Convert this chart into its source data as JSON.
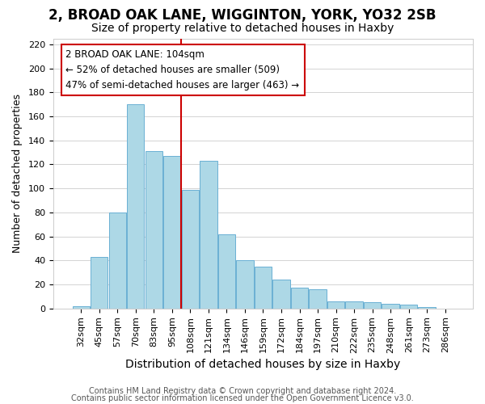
{
  "title": "2, BROAD OAK LANE, WIGGINTON, YORK, YO32 2SB",
  "subtitle": "Size of property relative to detached houses in Haxby",
  "xlabel": "Distribution of detached houses by size in Haxby",
  "ylabel": "Number of detached properties",
  "bar_labels": [
    "32sqm",
    "45sqm",
    "57sqm",
    "70sqm",
    "83sqm",
    "95sqm",
    "108sqm",
    "121sqm",
    "134sqm",
    "146sqm",
    "159sqm",
    "172sqm",
    "184sqm",
    "197sqm",
    "210sqm",
    "222sqm",
    "235sqm",
    "248sqm",
    "261sqm",
    "273sqm",
    "286sqm"
  ],
  "bar_values": [
    2,
    43,
    80,
    170,
    131,
    127,
    99,
    123,
    62,
    40,
    35,
    24,
    17,
    16,
    6,
    6,
    5,
    4,
    3,
    1,
    0
  ],
  "bar_color": "#add8e6",
  "bar_edge_color": "#6ab0d4",
  "vline_color": "#cc0000",
  "vline_index": 6,
  "annotation_line1": "2 BROAD OAK LANE: 104sqm",
  "annotation_line2": "← 52% of detached houses are smaller (509)",
  "annotation_line3": "47% of semi-detached houses are larger (463) →",
  "annotation_box_color": "#ffffff",
  "annotation_box_edge": "#cc0000",
  "ylim": [
    0,
    225
  ],
  "yticks": [
    0,
    20,
    40,
    60,
    80,
    100,
    120,
    140,
    160,
    180,
    200,
    220
  ],
  "footer1": "Contains HM Land Registry data © Crown copyright and database right 2024.",
  "footer2": "Contains public sector information licensed under the Open Government Licence v3.0.",
  "title_fontsize": 12,
  "subtitle_fontsize": 10,
  "xlabel_fontsize": 10,
  "ylabel_fontsize": 9,
  "tick_fontsize": 8,
  "annotation_fontsize": 8.5,
  "footer_fontsize": 7
}
